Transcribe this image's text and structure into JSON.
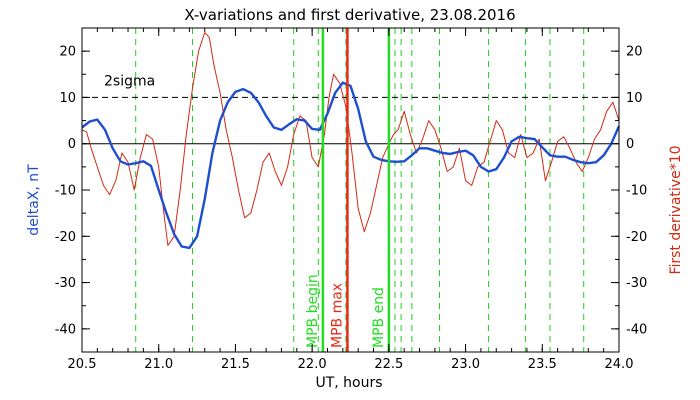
{
  "chart_data": {
    "type": "line",
    "title": "X-variations and first derivative, 23.08.2016",
    "xlabel": "UT, hours",
    "ylabel_left": "deltaX, nT",
    "ylabel_right": "First derivative*10",
    "xlim": [
      20.5,
      24.0
    ],
    "ylim": [
      -45,
      25
    ],
    "x_ticks": [
      "20.5",
      "21.0",
      "21.5",
      "22.0",
      "22.5",
      "23.0",
      "23.5",
      "24.0"
    ],
    "y_ticks": [
      "-40",
      "-30",
      "-20",
      "-10",
      "0",
      "10",
      "20"
    ],
    "sigma_label": "2sigma",
    "sigma_level": 10,
    "zero_level": 0,
    "colors": {
      "deltaX": "#1f4fd0",
      "derivative": "#d22a12",
      "mpb_begin": "#22dd22",
      "mpb_max": "#e82a14",
      "mpb_end": "#22dd22",
      "minima_lines": "#22cc22"
    },
    "series": [
      {
        "name": "deltaX, nT",
        "color_key": "deltaX",
        "x": [
          20.5,
          20.55,
          20.6,
          20.65,
          20.7,
          20.75,
          20.8,
          20.85,
          20.9,
          20.95,
          21.0,
          21.05,
          21.1,
          21.15,
          21.2,
          21.25,
          21.3,
          21.35,
          21.4,
          21.45,
          21.5,
          21.55,
          21.6,
          21.65,
          21.7,
          21.75,
          21.8,
          21.85,
          21.9,
          21.95,
          22.0,
          22.05,
          22.1,
          22.15,
          22.2,
          22.25,
          22.3,
          22.35,
          22.4,
          22.45,
          22.5,
          22.55,
          22.6,
          22.65,
          22.7,
          22.75,
          22.8,
          22.85,
          22.9,
          22.95,
          23.0,
          23.05,
          23.1,
          23.15,
          23.2,
          23.25,
          23.3,
          23.35,
          23.4,
          23.45,
          23.5,
          23.55,
          23.6,
          23.65,
          23.7,
          23.75,
          23.8,
          23.85,
          23.9,
          23.95,
          24.0
        ],
        "values": [
          3.5,
          4.8,
          5.2,
          3.0,
          -1.0,
          -3.8,
          -4.5,
          -4.2,
          -3.8,
          -4.8,
          -10.0,
          -15.0,
          -19.5,
          -22.2,
          -22.5,
          -20.0,
          -12.0,
          -2.0,
          5.0,
          9.0,
          11.2,
          11.8,
          11.0,
          9.0,
          6.0,
          3.5,
          3.0,
          4.2,
          5.3,
          5.0,
          3.2,
          3.0,
          6.5,
          11.0,
          13.2,
          12.5,
          7.5,
          0.5,
          -2.8,
          -3.5,
          -3.8,
          -3.9,
          -3.8,
          -2.5,
          -1.0,
          -1.0,
          -1.5,
          -2.0,
          -2.2,
          -1.8,
          -1.5,
          -2.5,
          -5.0,
          -6.0,
          -5.5,
          -3.0,
          0.5,
          1.5,
          1.2,
          1.0,
          -0.8,
          -2.5,
          -2.8,
          -2.8,
          -3.5,
          -4.0,
          -4.2,
          -4.0,
          -2.5,
          0.0,
          3.8
        ]
      },
      {
        "name": "First derivative*10",
        "color_key": "derivative",
        "x": [
          20.5,
          20.53,
          20.56,
          20.6,
          20.64,
          20.68,
          20.72,
          20.76,
          20.8,
          20.84,
          20.88,
          20.92,
          20.96,
          21.0,
          21.03,
          21.06,
          21.1,
          21.14,
          21.18,
          21.22,
          21.26,
          21.3,
          21.33,
          21.36,
          21.4,
          21.44,
          21.48,
          21.52,
          21.56,
          21.6,
          21.64,
          21.68,
          21.72,
          21.76,
          21.8,
          21.84,
          21.88,
          21.92,
          21.96,
          22.0,
          22.04,
          22.08,
          22.11,
          22.14,
          22.18,
          22.22,
          22.26,
          22.3,
          22.34,
          22.38,
          22.42,
          22.46,
          22.5,
          22.53,
          22.56,
          22.6,
          22.64,
          22.68,
          22.72,
          22.76,
          22.8,
          22.84,
          22.88,
          22.92,
          22.96,
          23.0,
          23.04,
          23.08,
          23.12,
          23.16,
          23.2,
          23.24,
          23.28,
          23.32,
          23.36,
          23.4,
          23.44,
          23.48,
          23.52,
          23.56,
          23.6,
          23.64,
          23.68,
          23.72,
          23.76,
          23.8,
          23.84,
          23.88,
          23.92,
          23.96,
          24.0
        ],
        "values": [
          3.0,
          2.5,
          -1.0,
          -5.0,
          -9.0,
          -11.0,
          -8.0,
          -2.0,
          -4.0,
          -10.0,
          -3.0,
          2.0,
          1.0,
          -5.0,
          -14.0,
          -22.0,
          -20.0,
          -10.0,
          2.0,
          12.0,
          20.0,
          24.0,
          23.0,
          17.0,
          11.0,
          3.0,
          -3.0,
          -10.0,
          -16.0,
          -15.0,
          -10.0,
          -4.0,
          -2.0,
          -6.0,
          -9.0,
          -5.0,
          2.0,
          6.0,
          5.0,
          -3.0,
          -5.0,
          2.0,
          10.0,
          15.0,
          13.0,
          8.0,
          -2.0,
          -14.0,
          -19.0,
          -15.0,
          -9.0,
          -3.0,
          0.0,
          2.0,
          3.0,
          7.0,
          2.0,
          -2.0,
          1.0,
          5.0,
          3.0,
          -1.0,
          -6.0,
          -5.0,
          -1.0,
          -8.0,
          -9.0,
          -5.0,
          -4.0,
          0.5,
          5.0,
          3.0,
          -2.0,
          -3.0,
          2.0,
          -3.0,
          -2.0,
          1.0,
          -8.0,
          -4.0,
          0.5,
          1.5,
          -1.0,
          -4.0,
          -6.0,
          -3.0,
          1.0,
          3.0,
          7.0,
          9.0,
          5.0
        ]
      }
    ],
    "markers": [
      {
        "label": "MPB begin",
        "x": 22.07,
        "color_key": "mpb_begin"
      },
      {
        "label": "MPB max",
        "x": 22.23,
        "color_key": "mpb_max"
      },
      {
        "label": "MPB end",
        "x": 22.5,
        "color_key": "mpb_end"
      }
    ],
    "dashed_lines_x": [
      20.85,
      21.22,
      21.88,
      22.04,
      22.22,
      22.54,
      22.58,
      22.65,
      22.83,
      23.15,
      23.39,
      23.55,
      23.77
    ]
  }
}
